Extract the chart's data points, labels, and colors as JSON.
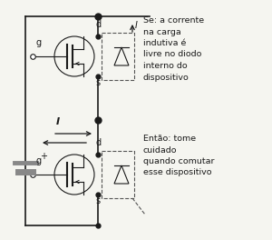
{
  "bg_color": "#f5f5f0",
  "line_color": "#1a1a1a",
  "dashed_color": "#555555",
  "fig_width": 3.0,
  "fig_height": 2.64,
  "dpi": 100,
  "text_right_1": "Se: a corrente\nna carga\nindutiva é\nlivre no diodo\ninterno do\ndispositivo",
  "text_right_2": "Então: tome\ncuidado\nquando comutar\nesse dispositivo",
  "label_d": "d",
  "label_g": "g",
  "label_s": "s",
  "label_I": "I",
  "label_plus": "+",
  "font_size_label": 7,
  "font_size_text": 6.8
}
